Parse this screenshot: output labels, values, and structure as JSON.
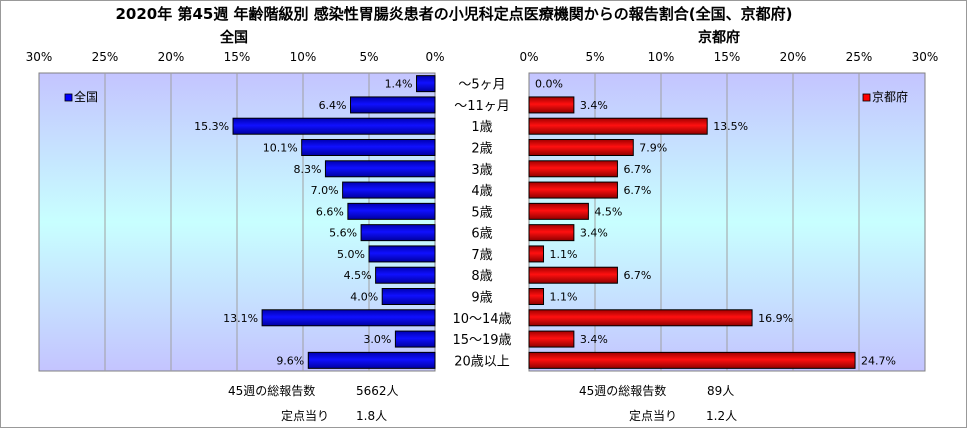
{
  "title": "2020年 第45週 年齢階級別 感染性胃腸炎患者の小児科定点医療機関からの報告割合(全国、京都府)",
  "colors": {
    "national": "#0000ff",
    "kyoto": "#ff0000",
    "bar_outline": "#000000"
  },
  "chart_data": [
    {
      "type": "bar",
      "orientation": "horizontal",
      "direction": "right-to-left",
      "title": "全国",
      "legend": {
        "label": "全国",
        "position": "top-left"
      },
      "xlim": [
        0,
        30
      ],
      "xticks": [
        "30%",
        "25%",
        "20%",
        "15%",
        "10%",
        "5%",
        "0%"
      ],
      "grid": true,
      "categories": [
        "～5ヶ月",
        "～11ヶ月",
        "1歳",
        "2歳",
        "3歳",
        "4歳",
        "5歳",
        "6歳",
        "7歳",
        "8歳",
        "9歳",
        "10～14歳",
        "15～19歳",
        "20歳以上"
      ],
      "values": [
        1.4,
        6.4,
        15.3,
        10.1,
        8.3,
        7.0,
        6.6,
        5.6,
        5.0,
        4.5,
        4.0,
        13.1,
        3.0,
        9.6
      ],
      "value_labels": [
        "1.4%",
        "6.4%",
        "15.3%",
        "10.1%",
        "8.3%",
        "7.0%",
        "6.6%",
        "5.6%",
        "5.0%",
        "4.5%",
        "4.0%",
        "13.1%",
        "3.0%",
        "9.6%"
      ]
    },
    {
      "type": "bar",
      "orientation": "horizontal",
      "direction": "left-to-right",
      "title": "京都府",
      "legend": {
        "label": "京都府",
        "position": "top-right"
      },
      "xlim": [
        0,
        30
      ],
      "xticks": [
        "0%",
        "5%",
        "10%",
        "15%",
        "20%",
        "25%",
        "30%"
      ],
      "grid": true,
      "categories": [
        "～5ヶ月",
        "～11ヶ月",
        "1歳",
        "2歳",
        "3歳",
        "4歳",
        "5歳",
        "6歳",
        "7歳",
        "8歳",
        "9歳",
        "10～14歳",
        "15～19歳",
        "20歳以上"
      ],
      "values": [
        0.0,
        3.4,
        13.5,
        7.9,
        6.7,
        6.7,
        4.5,
        3.4,
        1.1,
        6.7,
        1.1,
        16.9,
        3.4,
        24.7
      ],
      "value_labels": [
        "0.0%",
        "3.4%",
        "13.5%",
        "7.9%",
        "6.7%",
        "6.7%",
        "4.5%",
        "3.4%",
        "1.1%",
        "6.7%",
        "1.1%",
        "16.9%",
        "3.4%",
        "24.7%"
      ]
    }
  ],
  "summary": {
    "national": {
      "total_label": "45週の総報告数",
      "total_value": "5662人",
      "per_label": "定点当り",
      "per_value": "1.8人"
    },
    "kyoto": {
      "total_label": "45週の総報告数",
      "total_value": "89人",
      "per_label": "定点当り",
      "per_value": "1.2人"
    }
  }
}
